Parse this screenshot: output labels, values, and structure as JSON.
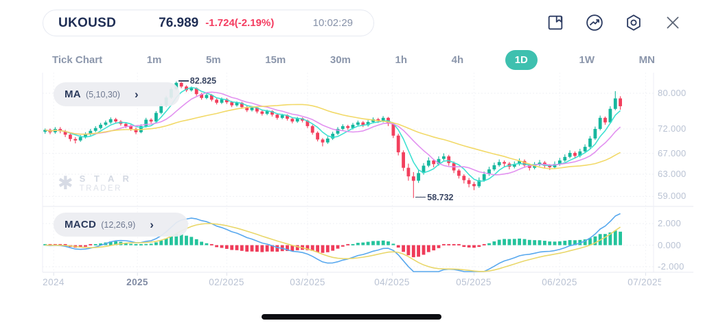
{
  "header": {
    "symbol": "UKOUSD",
    "price": "76.989",
    "change": "-1.724(-2.19%)",
    "time": "10:02:29"
  },
  "toolbar": {
    "icons": [
      "save-icon",
      "indicator-icon",
      "settings-icon",
      "close-icon"
    ]
  },
  "timeframes": {
    "items": [
      "Tick Chart",
      "1m",
      "5m",
      "15m",
      "30m",
      "1h",
      "4h",
      "1D",
      "1W",
      "MN"
    ],
    "active": "1D"
  },
  "indicators": {
    "ma": {
      "label": "MA",
      "params": "(5,10,30)"
    },
    "macd": {
      "label": "MACD",
      "params": "(12,26,9)"
    }
  },
  "annotations": {
    "high": "82.825",
    "low": "58.732"
  },
  "watermark": {
    "line1": "S T A R",
    "line2": "TRADER"
  },
  "colors": {
    "up": "#16b79e",
    "down": "#f23f5d",
    "ma5": "#35dfd0",
    "ma10": "#e08bef",
    "ma30": "#f1d75f",
    "macd_line": "#58a8ee",
    "macd_signal": "#e9d76a",
    "hist_up": "#24c39c",
    "hist_down": "#ef3b59",
    "accent": "#3ec0af",
    "grid": "#e9ebf1",
    "spine": "#eceef4",
    "navy": "#1f2e55",
    "red": "#f43b5f"
  },
  "chart_data": {
    "type": "candlestick",
    "symbol": "UKOUSD",
    "timeframe": "1D",
    "title": "UKOUSD daily candlestick chart with MA(5,10,30) overlay and MACD(12,26,9) sub-panel",
    "price_axis": {
      "scale": "log",
      "labels": [
        "80.000",
        "72.000",
        "67.000",
        "63.000",
        "59.000"
      ],
      "range": [
        57.5,
        84.5
      ]
    },
    "macd_axis": {
      "labels": [
        "2.000",
        "0.000",
        "-2.000"
      ],
      "range": [
        -3.2,
        3.3
      ]
    },
    "x_axis": {
      "labels": [
        "2024",
        "2025",
        "02/2025",
        "03/2025",
        "04/2025",
        "05/2025",
        "06/2025",
        "07/2025"
      ],
      "positions_idx": [
        1.7,
        18.3,
        36,
        52,
        68.8,
        85,
        102,
        119
      ],
      "emphasized_label": "2025"
    },
    "high_annotation": {
      "index": 26,
      "value": 82.825
    },
    "low_annotation": {
      "index": 73,
      "value": 58.732
    },
    "ma_periods": [
      5,
      10,
      30
    ],
    "macd_params": [
      12,
      26,
      9
    ],
    "candles": [
      [
        71.4,
        72.1,
        71.0,
        71.8
      ],
      [
        71.8,
        72.1,
        70.9,
        71.3
      ],
      [
        71.3,
        72.4,
        71.0,
        72.0
      ],
      [
        72.0,
        72.4,
        71.1,
        71.5
      ],
      [
        71.5,
        71.8,
        70.3,
        70.8
      ],
      [
        70.8,
        71.1,
        69.4,
        69.9
      ],
      [
        69.9,
        70.3,
        69.0,
        69.6
      ],
      [
        69.6,
        70.7,
        69.3,
        70.3
      ],
      [
        70.3,
        71.3,
        70.0,
        70.9
      ],
      [
        70.9,
        72.0,
        70.6,
        71.6
      ],
      [
        71.6,
        72.6,
        71.3,
        72.2
      ],
      [
        72.2,
        73.3,
        71.9,
        72.9
      ],
      [
        72.9,
        73.8,
        72.6,
        73.4
      ],
      [
        73.4,
        74.5,
        73.1,
        74.1
      ],
      [
        74.1,
        74.4,
        73.2,
        73.6
      ],
      [
        73.6,
        73.9,
        72.7,
        73.1
      ],
      [
        73.1,
        73.4,
        72.2,
        72.6
      ],
      [
        72.6,
        72.9,
        71.6,
        72.0
      ],
      [
        72.0,
        72.3,
        70.9,
        71.3
      ],
      [
        71.3,
        73.0,
        71.1,
        72.6
      ],
      [
        72.6,
        74.4,
        72.3,
        74.0
      ],
      [
        74.0,
        74.3,
        73.2,
        73.6
      ],
      [
        73.6,
        75.9,
        73.4,
        75.5
      ],
      [
        75.5,
        77.6,
        75.2,
        77.2
      ],
      [
        77.2,
        79.4,
        76.9,
        79.0
      ],
      [
        79.0,
        81.4,
        78.7,
        81.0
      ],
      [
        81.0,
        82.825,
        80.7,
        82.5
      ],
      [
        82.5,
        82.7,
        81.2,
        81.6
      ],
      [
        81.6,
        81.9,
        80.3,
        80.7
      ],
      [
        80.7,
        81.6,
        80.4,
        81.2
      ],
      [
        81.2,
        81.4,
        79.4,
        79.8
      ],
      [
        79.8,
        80.1,
        78.5,
        78.9
      ],
      [
        78.9,
        79.9,
        78.6,
        79.6
      ],
      [
        79.6,
        79.8,
        78.1,
        78.5
      ],
      [
        78.5,
        78.8,
        77.4,
        77.8
      ],
      [
        77.8,
        79.0,
        77.5,
        78.6
      ],
      [
        78.6,
        78.9,
        77.5,
        77.9
      ],
      [
        77.9,
        78.2,
        76.8,
        77.2
      ],
      [
        77.2,
        78.1,
        76.9,
        77.8
      ],
      [
        77.8,
        78.0,
        76.4,
        76.8
      ],
      [
        76.8,
        77.1,
        75.7,
        76.1
      ],
      [
        76.1,
        77.0,
        75.8,
        76.7
      ],
      [
        76.7,
        76.9,
        75.4,
        75.8
      ],
      [
        75.8,
        76.1,
        74.9,
        75.3
      ],
      [
        75.3,
        76.2,
        75.0,
        75.9
      ],
      [
        75.9,
        76.1,
        74.7,
        75.1
      ],
      [
        75.1,
        75.4,
        74.0,
        74.4
      ],
      [
        74.4,
        75.3,
        74.1,
        75.0
      ],
      [
        75.0,
        75.2,
        73.8,
        74.2
      ],
      [
        74.2,
        74.5,
        73.2,
        73.6
      ],
      [
        73.6,
        74.6,
        73.3,
        74.3
      ],
      [
        74.3,
        74.5,
        73.4,
        73.8
      ],
      [
        73.8,
        74.0,
        72.2,
        72.6
      ],
      [
        72.6,
        72.9,
        70.8,
        71.2
      ],
      [
        71.2,
        71.5,
        69.4,
        69.8
      ],
      [
        69.8,
        70.1,
        68.4,
        69.2
      ],
      [
        69.2,
        70.4,
        68.9,
        70.0
      ],
      [
        70.0,
        71.4,
        69.7,
        71.0
      ],
      [
        71.0,
        72.4,
        70.7,
        72.0
      ],
      [
        72.0,
        73.0,
        71.7,
        72.6
      ],
      [
        72.6,
        72.9,
        71.8,
        72.2
      ],
      [
        72.2,
        73.3,
        71.9,
        72.9
      ],
      [
        72.9,
        73.8,
        72.6,
        73.4
      ],
      [
        73.4,
        73.7,
        72.4,
        72.8
      ],
      [
        72.8,
        73.9,
        72.5,
        73.5
      ],
      [
        73.5,
        74.5,
        73.2,
        74.1
      ],
      [
        74.1,
        74.4,
        73.3,
        73.7
      ],
      [
        73.7,
        74.8,
        73.4,
        74.4
      ],
      [
        74.4,
        74.6,
        72.6,
        73.1
      ],
      [
        73.1,
        73.4,
        70.1,
        70.6
      ],
      [
        70.6,
        71.0,
        66.6,
        67.2
      ],
      [
        67.2,
        67.6,
        63.6,
        64.2
      ],
      [
        64.2,
        65.0,
        61.8,
        62.6
      ],
      [
        62.6,
        63.4,
        58.732,
        61.8
      ],
      [
        61.8,
        63.8,
        61.4,
        63.2
      ],
      [
        63.2,
        65.1,
        62.9,
        64.6
      ],
      [
        64.6,
        66.2,
        64.3,
        65.6
      ],
      [
        65.6,
        65.9,
        64.3,
        64.9
      ],
      [
        64.9,
        66.4,
        64.6,
        65.9
      ],
      [
        65.9,
        67.0,
        65.6,
        66.4
      ],
      [
        66.4,
        66.7,
        64.6,
        65.1
      ],
      [
        65.1,
        65.4,
        63.2,
        63.7
      ],
      [
        63.7,
        64.0,
        62.2,
        62.7
      ],
      [
        62.7,
        63.0,
        61.3,
        61.9
      ],
      [
        61.9,
        62.3,
        60.6,
        61.2
      ],
      [
        61.2,
        61.6,
        60.1,
        60.8
      ],
      [
        60.8,
        62.4,
        60.5,
        61.9
      ],
      [
        61.9,
        63.5,
        61.6,
        63.0
      ],
      [
        63.0,
        64.4,
        62.7,
        63.9
      ],
      [
        63.9,
        65.2,
        63.6,
        64.7
      ],
      [
        64.7,
        65.8,
        64.4,
        65.3
      ],
      [
        65.3,
        65.6,
        64.4,
        65.0
      ],
      [
        65.0,
        65.3,
        63.9,
        64.4
      ],
      [
        64.4,
        65.4,
        64.1,
        64.9
      ],
      [
        64.9,
        66.0,
        64.6,
        65.5
      ],
      [
        65.5,
        65.8,
        64.2,
        64.7
      ],
      [
        64.7,
        65.0,
        63.7,
        64.2
      ],
      [
        64.2,
        65.3,
        63.9,
        64.8
      ],
      [
        64.8,
        65.7,
        64.5,
        65.2
      ],
      [
        65.2,
        65.5,
        64.1,
        64.6
      ],
      [
        64.6,
        64.9,
        63.8,
        64.3
      ],
      [
        64.3,
        65.4,
        64.0,
        64.9
      ],
      [
        64.9,
        66.1,
        64.6,
        65.6
      ],
      [
        65.6,
        66.8,
        65.3,
        66.3
      ],
      [
        66.3,
        67.6,
        66.0,
        67.1
      ],
      [
        67.1,
        67.4,
        66.0,
        66.5
      ],
      [
        66.5,
        67.9,
        66.2,
        67.4
      ],
      [
        67.4,
        68.8,
        67.1,
        68.3
      ],
      [
        68.3,
        70.5,
        68.0,
        70.0
      ],
      [
        70.0,
        72.5,
        69.7,
        72.0
      ],
      [
        72.0,
        74.9,
        71.7,
        74.4
      ],
      [
        74.4,
        74.7,
        72.9,
        73.4
      ],
      [
        73.4,
        77.0,
        73.1,
        76.4
      ],
      [
        76.4,
        80.5,
        76.1,
        78.8
      ],
      [
        78.8,
        79.3,
        76.2,
        77.0
      ]
    ]
  }
}
